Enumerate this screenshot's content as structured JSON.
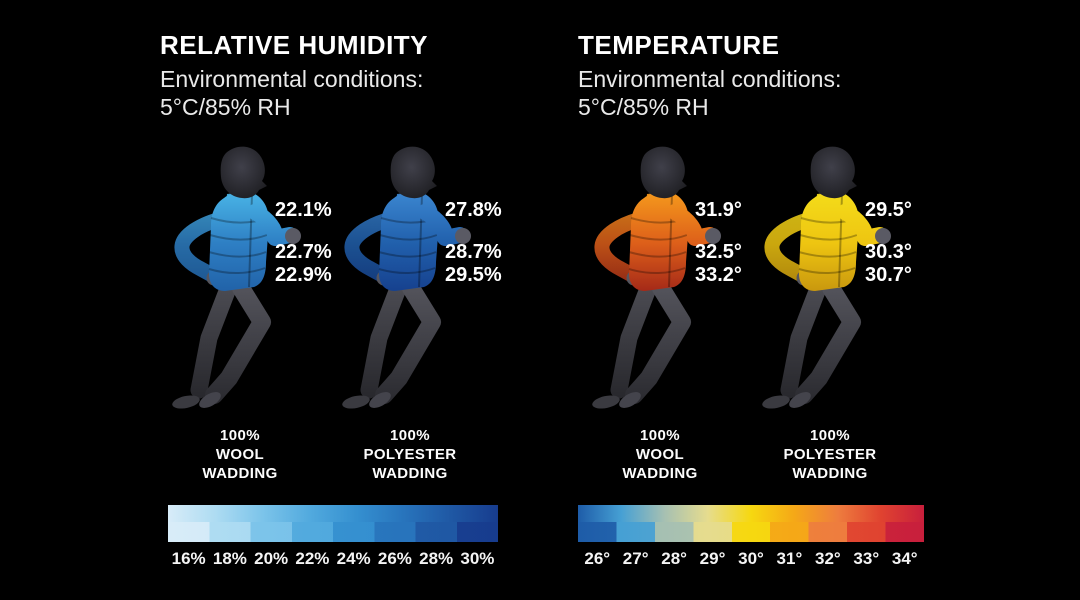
{
  "background": "#000000",
  "panels": [
    {
      "title": "RELATIVE HUMIDITY",
      "subtitle_line1": "Environmental conditions:",
      "subtitle_line2": "5°C/85% RH",
      "figures": [
        {
          "label_lines": [
            "100%",
            "WOOL",
            "WADDING"
          ],
          "readings": [
            "22.1%",
            "22.7%",
            "22.9%"
          ],
          "jacket_gradient": [
            "#49b4e6",
            "#2e7fc4",
            "#2060a6"
          ]
        },
        {
          "label_lines": [
            "100%",
            "POLYESTER",
            "WADDING"
          ],
          "readings": [
            "27.8%",
            "28.7%",
            "29.5%"
          ],
          "jacket_gradient": [
            "#3b86d0",
            "#2160ac",
            "#153e8c"
          ]
        }
      ],
      "scale": {
        "labels": [
          "16%",
          "18%",
          "20%",
          "22%",
          "24%",
          "26%",
          "28%",
          "30%"
        ],
        "colors": [
          "#d8ecf8",
          "#aedcf2",
          "#7cc4ea",
          "#52aade",
          "#3590d0",
          "#2874bc",
          "#1f58a4",
          "#173c8e"
        ]
      }
    },
    {
      "title": "TEMPERATURE",
      "subtitle_line1": "Environmental conditions:",
      "subtitle_line2": "5°C/85% RH",
      "figures": [
        {
          "label_lines": [
            "100%",
            "WOOL",
            "WADDING"
          ],
          "readings": [
            "31.9°",
            "32.5°",
            "33.2°"
          ],
          "jacket_gradient": [
            "#f5991c",
            "#dd5f1a",
            "#a02518"
          ]
        },
        {
          "label_lines": [
            "100%",
            "POLYESTER",
            "WADDING"
          ],
          "readings": [
            "29.5°",
            "30.3°",
            "30.7°"
          ],
          "jacket_gradient": [
            "#f4dc1a",
            "#eec511",
            "#c6940e"
          ]
        }
      ],
      "scale": {
        "labels": [
          "26°",
          "27°",
          "28°",
          "29°",
          "30°",
          "31°",
          "32°",
          "33°",
          "34°"
        ],
        "colors": [
          "#1e5ca8",
          "#46a0d4",
          "#a6c0b2",
          "#e6dc8e",
          "#f6d810",
          "#f5a817",
          "#ee7d3e",
          "#e04330",
          "#c81f3c"
        ]
      }
    }
  ]
}
